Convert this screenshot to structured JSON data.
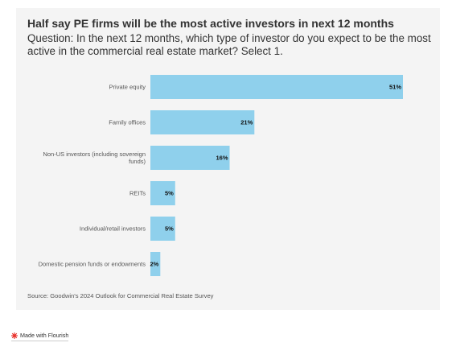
{
  "title": "Half say PE firms will be the most active investors in next 12 months",
  "subtitle": "Question: In the next 12 months, which type of investor do you expect to be the most active in the commercial real estate market? Select 1.",
  "source": "Source: Goodwin's 2024 Outlook for Commercial Real Estate Survey",
  "credit": "Made with Flourish",
  "colors": {
    "bar": "#8fd0ec",
    "card": "#f4f4f4",
    "credit_icon": "#e8302a"
  },
  "chart_data": {
    "type": "bar",
    "orientation": "horizontal",
    "categories": [
      "Private equity",
      "Family offices",
      "Non-US investors (including sovereign funds)",
      "REITs",
      "Individual/retail investors",
      "Domestic pension funds or endowments"
    ],
    "category_lines": [
      [
        "Private equity"
      ],
      [
        "Family offices"
      ],
      [
        "Non-US investors (including sovereign",
        "funds)"
      ],
      [
        "REITs"
      ],
      [
        "Individual/retail investors"
      ],
      [
        "Domestic pension funds or endowments"
      ]
    ],
    "values": [
      51,
      21,
      16,
      5,
      5,
      2
    ],
    "value_labels": [
      "51%",
      "21%",
      "16%",
      "5%",
      "5%",
      "2%"
    ],
    "xlim": [
      0,
      51
    ],
    "grid": false,
    "legend": "none"
  }
}
